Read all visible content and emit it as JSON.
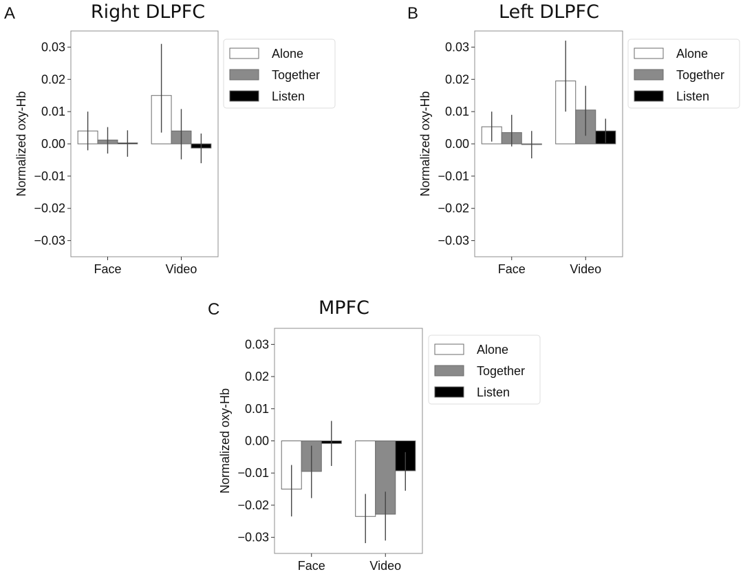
{
  "colors": {
    "alone": "#ffffff",
    "together": "#8a8a8a",
    "listen": "#000000",
    "axis": "#8c8c8c",
    "errorbar": "#444444"
  },
  "chart_data": [
    {
      "type": "bar",
      "panel_label": "A",
      "title": "Right DLPFC",
      "ylabel": "Normalized oxy-Hb",
      "xlabel": "",
      "ylim": [
        -0.035,
        0.035
      ],
      "yticks": [
        -0.03,
        -0.02,
        -0.01,
        0.0,
        0.01,
        0.02,
        0.03
      ],
      "ytick_labels": [
        "−0.03",
        "−0.02",
        "−0.01",
        "0.00",
        "0.01",
        "0.02",
        "0.03"
      ],
      "categories": [
        "Face",
        "Video"
      ],
      "grid": false,
      "legend_position": "right, outside",
      "series": [
        {
          "name": "Alone",
          "color_key": "alone",
          "values": [
            0.004,
            0.015
          ],
          "err_low": [
            -0.002,
            0.0035
          ],
          "err_high": [
            0.01,
            0.031
          ]
        },
        {
          "name": "Together",
          "color_key": "together",
          "values": [
            0.0012,
            0.004
          ],
          "err_low": [
            -0.003,
            -0.0048
          ],
          "err_high": [
            0.0052,
            0.0108
          ]
        },
        {
          "name": "Listen",
          "color_key": "listen",
          "values": [
            0.0003,
            -0.0013
          ],
          "err_low": [
            -0.004,
            -0.006
          ],
          "err_high": [
            0.0042,
            0.0032
          ]
        }
      ]
    },
    {
      "type": "bar",
      "panel_label": "B",
      "title": "Left DLPFC",
      "ylabel": "Normalized oxy-Hb",
      "xlabel": "",
      "ylim": [
        -0.035,
        0.035
      ],
      "yticks": [
        -0.03,
        -0.02,
        -0.01,
        0.0,
        0.01,
        0.02,
        0.03
      ],
      "ytick_labels": [
        "−0.03",
        "−0.02",
        "−0.01",
        "0.00",
        "0.01",
        "0.02",
        "0.03"
      ],
      "categories": [
        "Face",
        "Video"
      ],
      "grid": false,
      "legend_position": "right, outside",
      "series": [
        {
          "name": "Alone",
          "color_key": "alone",
          "values": [
            0.0053,
            0.0195
          ],
          "err_low": [
            0.0007,
            0.01
          ],
          "err_high": [
            0.01,
            0.032
          ]
        },
        {
          "name": "Together",
          "color_key": "together",
          "values": [
            0.0035,
            0.0105
          ],
          "err_low": [
            -0.0008,
            0.0025
          ],
          "err_high": [
            0.009,
            0.018
          ]
        },
        {
          "name": "Listen",
          "color_key": "listen",
          "values": [
            0.0,
            0.004
          ],
          "err_low": [
            -0.0045,
            0.0003
          ],
          "err_high": [
            0.004,
            0.0078
          ]
        }
      ]
    },
    {
      "type": "bar",
      "panel_label": "C",
      "title": "MPFC",
      "ylabel": "Normalized oxy-Hb",
      "xlabel": "",
      "ylim": [
        -0.035,
        0.035
      ],
      "yticks": [
        -0.03,
        -0.02,
        -0.01,
        0.0,
        0.01,
        0.02,
        0.03
      ],
      "ytick_labels": [
        "−0.03",
        "−0.02",
        "−0.01",
        "0.00",
        "0.01",
        "0.02",
        "0.03"
      ],
      "categories": [
        "Face",
        "Video"
      ],
      "grid": false,
      "legend_position": "right, outside",
      "series": [
        {
          "name": "Alone",
          "color_key": "alone",
          "values": [
            -0.015,
            -0.0235
          ],
          "err_low": [
            -0.0235,
            -0.0318
          ],
          "err_high": [
            -0.0075,
            -0.0165
          ]
        },
        {
          "name": "Together",
          "color_key": "together",
          "values": [
            -0.0095,
            -0.0228
          ],
          "err_low": [
            -0.0178,
            -0.031
          ],
          "err_high": [
            -0.0015,
            -0.0158
          ]
        },
        {
          "name": "Listen",
          "color_key": "listen",
          "values": [
            -0.0008,
            -0.0093
          ],
          "err_low": [
            -0.0078,
            -0.0155
          ],
          "err_high": [
            0.0062,
            -0.0035
          ]
        }
      ]
    }
  ]
}
